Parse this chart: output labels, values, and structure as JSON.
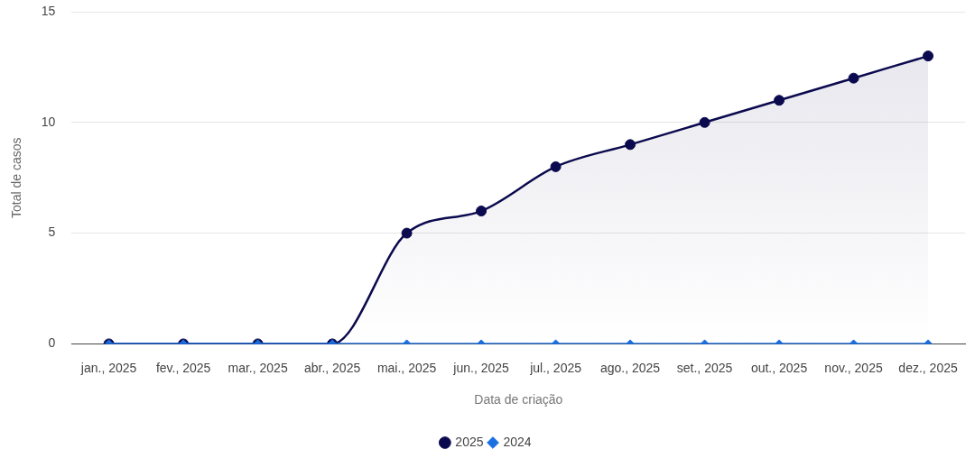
{
  "chart_data": {
    "type": "line",
    "xlabel": "Data de criação",
    "ylabel": "Total de casos",
    "categories": [
      "jan., 2025",
      "fev., 2025",
      "mar., 2025",
      "abr., 2025",
      "mai., 2025",
      "jun., 2025",
      "jul., 2025",
      "ago., 2025",
      "set., 2025",
      "out., 2025",
      "nov., 2025",
      "dez., 2025"
    ],
    "series": [
      {
        "name": "2025",
        "type": "area",
        "color": "#0b0a4e",
        "marker": "circle",
        "values": [
          0,
          0,
          0,
          0,
          5,
          6,
          8,
          9,
          10,
          11,
          12,
          13
        ]
      },
      {
        "name": "2024",
        "type": "line",
        "color": "#1a6fe0",
        "marker": "diamond",
        "values": [
          0,
          0,
          0,
          0,
          0,
          0,
          0,
          0,
          0,
          0,
          0,
          0
        ]
      }
    ],
    "ylim": [
      0,
      15
    ],
    "yticks": [
      0,
      5,
      10,
      15
    ],
    "grid": "y",
    "legend": "bottom"
  }
}
